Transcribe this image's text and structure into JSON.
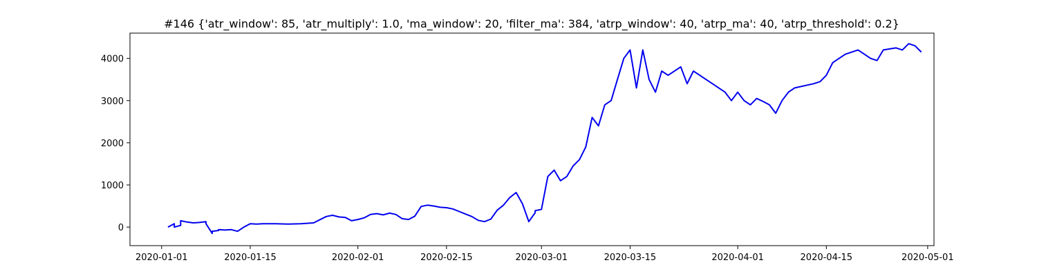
{
  "chart_data": {
    "type": "line",
    "title": "#146 {'atr_window': 85, 'atr_multiply': 1.0, 'ma_window': 20, 'filter_ma': 384, 'atrp_window': 40, 'atrp_ma': 40, 'atrp_threshold': 0.2}",
    "xlabel": "",
    "ylabel": "",
    "xlim": [
      "2019-12-27",
      "2020-05-02"
    ],
    "ylim": [
      -440,
      4600
    ],
    "grid": false,
    "x_ticks": [
      "2020-01-01",
      "2020-01-15",
      "2020-02-01",
      "2020-02-15",
      "2020-03-01",
      "2020-03-15",
      "2020-04-01",
      "2020-04-15",
      "2020-05-01"
    ],
    "y_ticks": [
      0,
      1000,
      2000,
      3000,
      4000
    ],
    "series": [
      {
        "color": "#0000ee",
        "x": [
          "2020-01-02",
          "2020-01-03",
          "2020-01-03",
          "2020-01-04",
          "2020-01-04",
          "2020-01-05",
          "2020-01-06",
          "2020-01-07",
          "2020-01-08",
          "2020-01-08",
          "2020-01-09",
          "2020-01-09",
          "2020-01-10",
          "2020-01-10",
          "2020-01-11",
          "2020-01-12",
          "2020-01-13",
          "2020-01-14",
          "2020-01-15",
          "2020-01-16",
          "2020-01-17",
          "2020-01-19",
          "2020-01-21",
          "2020-01-23",
          "2020-01-25",
          "2020-01-27",
          "2020-01-28",
          "2020-01-29",
          "2020-01-30",
          "2020-01-31",
          "2020-02-01",
          "2020-02-02",
          "2020-02-03",
          "2020-02-04",
          "2020-02-05",
          "2020-02-06",
          "2020-02-07",
          "2020-02-08",
          "2020-02-09",
          "2020-02-10",
          "2020-02-11",
          "2020-02-12",
          "2020-02-13",
          "2020-02-14",
          "2020-02-15",
          "2020-02-16",
          "2020-02-17",
          "2020-02-18",
          "2020-02-19",
          "2020-02-20",
          "2020-02-21",
          "2020-02-22",
          "2020-02-23",
          "2020-02-24",
          "2020-02-25",
          "2020-02-26",
          "2020-02-27",
          "2020-02-28",
          "2020-02-29",
          "2020-02-29",
          "2020-03-01",
          "2020-03-02",
          "2020-03-03",
          "2020-03-04",
          "2020-03-05",
          "2020-03-06",
          "2020-03-07",
          "2020-03-08",
          "2020-03-09",
          "2020-03-10",
          "2020-03-11",
          "2020-03-12",
          "2020-03-13",
          "2020-03-14",
          "2020-03-15",
          "2020-03-16",
          "2020-03-17",
          "2020-03-18",
          "2020-03-19",
          "2020-03-20",
          "2020-03-21",
          "2020-03-23",
          "2020-03-24",
          "2020-03-25",
          "2020-03-26",
          "2020-03-27",
          "2020-03-28",
          "2020-03-30",
          "2020-03-31",
          "2020-04-01",
          "2020-04-02",
          "2020-04-03",
          "2020-04-04",
          "2020-04-05",
          "2020-04-06",
          "2020-04-07",
          "2020-04-08",
          "2020-04-09",
          "2020-04-10",
          "2020-04-13",
          "2020-04-14",
          "2020-04-15",
          "2020-04-16",
          "2020-04-17",
          "2020-04-18",
          "2020-04-20",
          "2020-04-21",
          "2020-04-22",
          "2020-04-23",
          "2020-04-24",
          "2020-04-26",
          "2020-04-27",
          "2020-04-28",
          "2020-04-29",
          "2020-04-30"
        ],
        "values": [
          0,
          80,
          0,
          40,
          150,
          120,
          100,
          110,
          130,
          80,
          -150,
          -100,
          -80,
          -60,
          -70,
          -60,
          -100,
          0,
          80,
          70,
          80,
          80,
          70,
          80,
          100,
          250,
          280,
          240,
          230,
          150,
          180,
          220,
          300,
          320,
          290,
          330,
          300,
          200,
          180,
          260,
          490,
          520,
          500,
          470,
          460,
          430,
          370,
          310,
          250,
          160,
          130,
          190,
          400,
          520,
          700,
          820,
          550,
          130,
          340,
          390,
          420,
          1200,
          1350,
          1100,
          1200,
          1450,
          1600,
          1900,
          2600,
          2400,
          2900,
          3000,
          3500,
          4000,
          4200,
          3300,
          4200,
          3500,
          3200,
          3700,
          3600,
          3800,
          3400,
          3700,
          3600,
          3500,
          3400,
          3200,
          3000,
          3200,
          3000,
          2900,
          3050,
          2980,
          2900,
          2700,
          3000,
          3200,
          3300,
          3400,
          3450,
          3600,
          3900,
          4000,
          4100,
          4200,
          4100,
          4000,
          3950,
          4200,
          4250,
          4200,
          4350,
          4300,
          4150
        ]
      }
    ]
  }
}
